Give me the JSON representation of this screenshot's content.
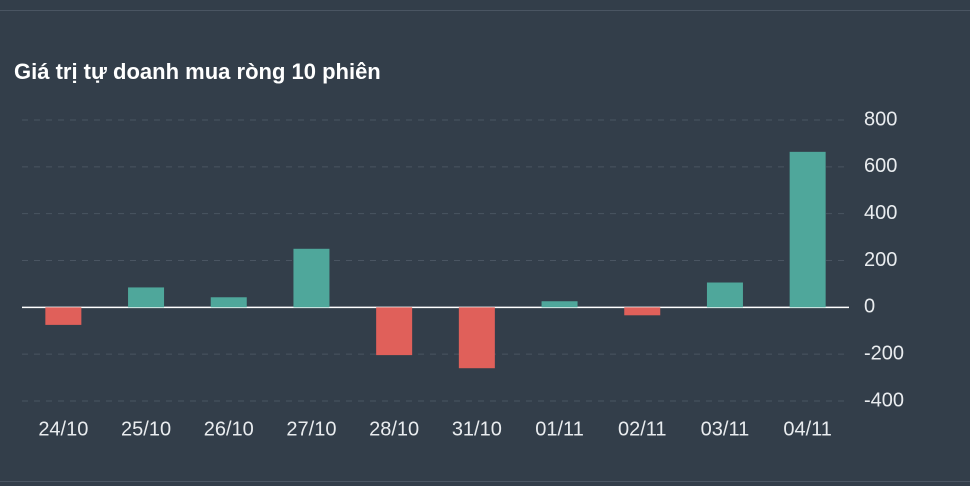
{
  "chart_data": {
    "type": "bar",
    "title": "Giá trị tự doanh mua ròng 10 phiên",
    "categories": [
      "24/10",
      "25/10",
      "26/10",
      "27/10",
      "28/10",
      "31/10",
      "01/11",
      "02/11",
      "03/11",
      "04/11"
    ],
    "values": [
      -75,
      85,
      43,
      250,
      -204,
      -260,
      26,
      -34,
      106,
      664
    ],
    "positive_color": "#4fa79b",
    "negative_color": "#e0605a",
    "ylim": [
      -400,
      800
    ],
    "yticks": [
      -400,
      -200,
      0,
      200,
      400,
      600,
      800
    ],
    "grid": true
  }
}
